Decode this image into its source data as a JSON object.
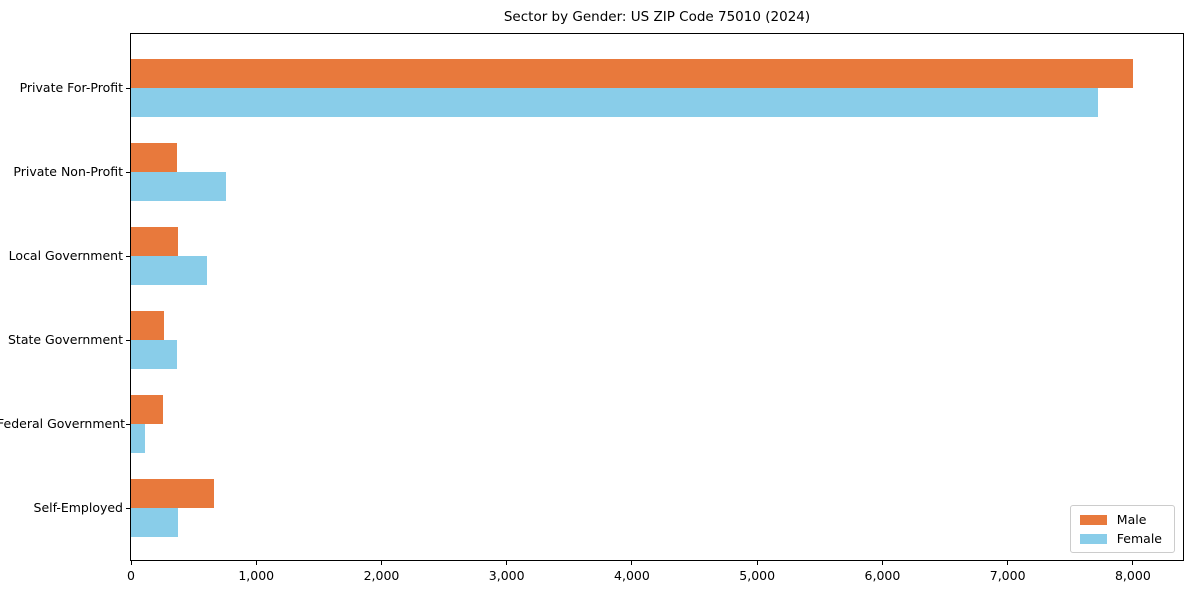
{
  "title": "Sector by Gender: US ZIP Code 75010 (2024)",
  "colors": {
    "male": "#e8793c",
    "female": "#89cde9",
    "axis": "#000000",
    "legend_border": "#cccccc",
    "background": "#ffffff"
  },
  "chart_data": {
    "type": "bar",
    "orientation": "horizontal",
    "title": "Sector by Gender: US ZIP Code 75010 (2024)",
    "xlabel": "",
    "ylabel": "",
    "categories": [
      "Private For-Profit",
      "Private Non-Profit",
      "Local Government",
      "State Government",
      "Federal Government",
      "Self-Employed"
    ],
    "series": [
      {
        "name": "Male",
        "color": "#e8793c",
        "values": [
          8000,
          370,
          375,
          265,
          255,
          660
        ]
      },
      {
        "name": "Female",
        "color": "#89cde9",
        "values": [
          7720,
          755,
          605,
          365,
          110,
          375
        ]
      }
    ],
    "xlim": [
      0,
      8400
    ],
    "x_ticks": [
      0,
      1000,
      2000,
      3000,
      4000,
      5000,
      6000,
      7000,
      8000
    ],
    "x_tick_labels": [
      "0",
      "1,000",
      "2,000",
      "3,000",
      "4,000",
      "5,000",
      "6,000",
      "7,000",
      "8,000"
    ],
    "grid": false,
    "legend": {
      "position": "lower right",
      "entries": [
        {
          "label": "Male"
        },
        {
          "label": "Female"
        }
      ]
    }
  }
}
